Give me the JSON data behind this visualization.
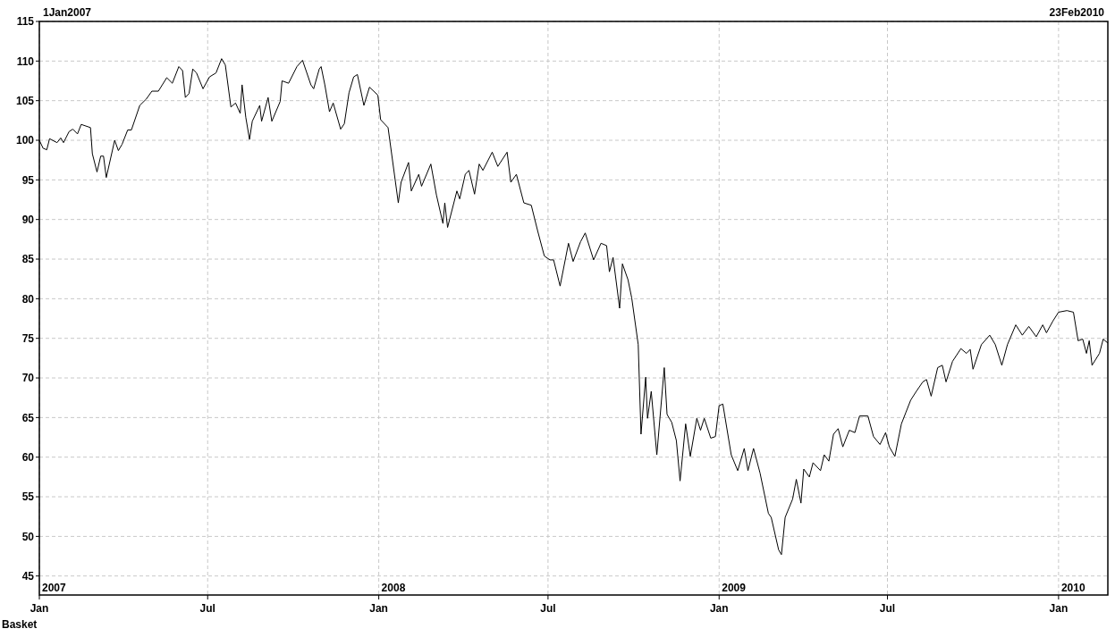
{
  "chart_data": {
    "type": "line",
    "xlabel": "Basket",
    "x": [
      "2007-01-01",
      "2007-01-05",
      "2007-01-09",
      "2007-01-12",
      "2007-01-20",
      "2007-01-24",
      "2007-01-27",
      "2007-02-02",
      "2007-02-06",
      "2007-02-11",
      "2007-02-15",
      "2007-02-20",
      "2007-02-25",
      "2007-02-27",
      "2007-03-04",
      "2007-03-08",
      "2007-03-11",
      "2007-03-14",
      "2007-03-23",
      "2007-03-27",
      "2007-03-31",
      "2007-04-06",
      "2007-04-10",
      "2007-04-19",
      "2007-04-26",
      "2007-05-02",
      "2007-05-09",
      "2007-05-18",
      "2007-05-24",
      "2007-05-31",
      "2007-06-04",
      "2007-06-07",
      "2007-06-11",
      "2007-06-15",
      "2007-06-19",
      "2007-06-26",
      "2007-07-03",
      "2007-07-10",
      "2007-07-16",
      "2007-07-20",
      "2007-07-26",
      "2007-07-31",
      "2007-08-05",
      "2007-08-07",
      "2007-08-11",
      "2007-08-15",
      "2007-08-18",
      "2007-08-26",
      "2007-08-28",
      "2007-09-04",
      "2007-09-08",
      "2007-09-17",
      "2007-09-19",
      "2007-09-26",
      "2007-10-05",
      "2007-10-11",
      "2007-10-20",
      "2007-10-23",
      "2007-10-29",
      "2007-10-31",
      "2007-11-04",
      "2007-11-09",
      "2007-11-13",
      "2007-11-21",
      "2007-11-25",
      "2007-11-30",
      "2007-12-05",
      "2007-12-09",
      "2007-12-16",
      "2007-12-22",
      "2007-12-31",
      "2008-01-03",
      "2008-01-11",
      "2008-01-22",
      "2008-01-25",
      "2008-02-02",
      "2008-02-05",
      "2008-02-13",
      "2008-02-16",
      "2008-02-26",
      "2008-03-03",
      "2008-03-10",
      "2008-03-12",
      "2008-03-15",
      "2008-03-25",
      "2008-03-28",
      "2008-04-03",
      "2008-04-07",
      "2008-04-13",
      "2008-04-18",
      "2008-04-22",
      "2008-05-02",
      "2008-05-08",
      "2008-05-18",
      "2008-05-22",
      "2008-05-28",
      "2008-06-05",
      "2008-06-13",
      "2008-06-20",
      "2008-06-27",
      "2008-07-03",
      "2008-07-07",
      "2008-07-14",
      "2008-07-23",
      "2008-07-28",
      "2008-08-05",
      "2008-08-10",
      "2008-08-19",
      "2008-08-27",
      "2008-09-02",
      "2008-09-05",
      "2008-09-09",
      "2008-09-16",
      "2008-09-19",
      "2008-09-25",
      "2008-09-29",
      "2008-10-06",
      "2008-10-09",
      "2008-10-14",
      "2008-10-16",
      "2008-10-20",
      "2008-10-26",
      "2008-11-03",
      "2008-11-06",
      "2008-11-11",
      "2008-11-16",
      "2008-11-20",
      "2008-11-26",
      "2008-12-01",
      "2008-12-08",
      "2008-12-12",
      "2008-12-16",
      "2008-12-23",
      "2008-12-28",
      "2009-01-01",
      "2009-01-05",
      "2009-01-14",
      "2009-01-21",
      "2009-01-28",
      "2009-02-01",
      "2009-02-07",
      "2009-02-14",
      "2009-02-23",
      "2009-02-26",
      "2009-03-06",
      "2009-03-09",
      "2009-03-13",
      "2009-03-21",
      "2009-03-25",
      "2009-03-30",
      "2009-04-02",
      "2009-04-08",
      "2009-04-12",
      "2009-04-20",
      "2009-04-24",
      "2009-04-29",
      "2009-05-04",
      "2009-05-09",
      "2009-05-14",
      "2009-05-21",
      "2009-05-27",
      "2009-06-01",
      "2009-06-10",
      "2009-06-16",
      "2009-06-23",
      "2009-06-29",
      "2009-07-03",
      "2009-07-09",
      "2009-07-16",
      "2009-07-21",
      "2009-07-26",
      "2009-08-01",
      "2009-08-08",
      "2009-08-12",
      "2009-08-17",
      "2009-08-24",
      "2009-08-29",
      "2009-09-02",
      "2009-09-09",
      "2009-09-18",
      "2009-09-24",
      "2009-09-28",
      "2009-10-01",
      "2009-10-10",
      "2009-10-19",
      "2009-10-25",
      "2009-11-01",
      "2009-11-07",
      "2009-11-16",
      "2009-11-23",
      "2009-11-30",
      "2009-12-08",
      "2009-12-15",
      "2009-12-19",
      "2009-12-26",
      "2010-01-01",
      "2010-01-10",
      "2010-01-17",
      "2010-01-22",
      "2010-01-27",
      "2010-01-31",
      "2010-02-03",
      "2010-02-06",
      "2010-02-14",
      "2010-02-18",
      "2010-02-23"
    ],
    "series": [
      {
        "color": "#000000",
        "values": [
          100,
          99.0,
          98.8,
          100.2,
          99.7,
          100.3,
          99.7,
          101.1,
          101.4,
          100.8,
          102.0,
          101.8,
          101.6,
          98.3,
          96.0,
          98.0,
          98.0,
          95.3,
          100.0,
          98.7,
          99.5,
          101.3,
          101.3,
          104.4,
          105.2,
          106.2,
          106.2,
          107.9,
          107.2,
          109.3,
          108.8,
          105.4,
          105.9,
          109.0,
          108.5,
          106.5,
          108.0,
          108.5,
          110.3,
          109.5,
          104.2,
          104.7,
          103.4,
          107.0,
          102.9,
          100.1,
          102.4,
          104.4,
          102.4,
          105.4,
          102.4,
          104.9,
          107.5,
          107.2,
          109.3,
          110.1,
          107.0,
          106.5,
          109.0,
          109.3,
          107.0,
          103.6,
          104.7,
          101.4,
          102.1,
          106.0,
          108.0,
          108.3,
          104.4,
          106.7,
          105.7,
          102.6,
          101.6,
          92.1,
          94.7,
          97.2,
          93.6,
          95.7,
          94.2,
          97.0,
          93.1,
          89.5,
          92.1,
          89.0,
          93.6,
          92.6,
          95.7,
          96.2,
          93.2,
          97.0,
          96.2,
          98.5,
          96.7,
          98.5,
          94.7,
          95.7,
          92.1,
          91.8,
          88.5,
          85.4,
          84.9,
          84.9,
          81.6,
          87.0,
          84.7,
          87.2,
          88.3,
          84.9,
          87.0,
          86.7,
          83.4,
          85.2,
          78.8,
          84.4,
          82.4,
          80.1,
          74.2,
          62.9,
          70.1,
          64.9,
          68.3,
          60.3,
          71.3,
          65.4,
          64.4,
          62.1,
          57.0,
          64.2,
          60.1,
          64.9,
          63.4,
          64.9,
          62.4,
          62.6,
          66.5,
          66.7,
          60.3,
          58.3,
          61.1,
          58.3,
          61.1,
          58.0,
          52.9,
          52.4,
          48.3,
          47.7,
          52.4,
          54.7,
          57.2,
          54.2,
          58.5,
          57.5,
          59.3,
          58.3,
          60.3,
          59.5,
          62.9,
          63.6,
          61.3,
          63.4,
          63.1,
          65.2,
          65.2,
          62.6,
          61.6,
          63.1,
          61.3,
          60.1,
          64.2,
          65.7,
          67.2,
          68.3,
          69.5,
          69.8,
          67.7,
          71.3,
          71.6,
          69.5,
          72.1,
          73.7,
          73.1,
          73.6,
          71.1,
          74.2,
          75.4,
          74.2,
          71.6,
          74.2,
          76.7,
          75.4,
          76.5,
          75.2,
          76.7,
          75.7,
          77.2,
          78.3,
          78.5,
          78.3,
          74.7,
          74.9,
          73.1,
          74.7,
          71.6,
          73.1,
          74.9,
          74.4
        ]
      }
    ],
    "xlim": [
      "2007-01-01",
      "2010-02-23"
    ],
    "xticks": [
      {
        "value": "2007-01-01",
        "label": "Jan"
      },
      {
        "value": "2007-07-01",
        "label": "Jul"
      },
      {
        "value": "2008-01-01",
        "label": "Jan"
      },
      {
        "value": "2008-07-01",
        "label": "Jul"
      },
      {
        "value": "2009-01-01",
        "label": "Jan"
      },
      {
        "value": "2009-07-01",
        "label": "Jul"
      },
      {
        "value": "2010-01-01",
        "label": "Jan"
      }
    ],
    "ylim": [
      42.6,
      115
    ],
    "yticks": [
      45,
      50,
      55,
      60,
      65,
      70,
      75,
      80,
      85,
      90,
      95,
      100,
      105,
      110,
      115
    ],
    "annotations": [
      "1Jan2007",
      "23Feb2010",
      "2007",
      "2008",
      "2009",
      "2010"
    ],
    "grid": true,
    "line_style": "solid"
  }
}
